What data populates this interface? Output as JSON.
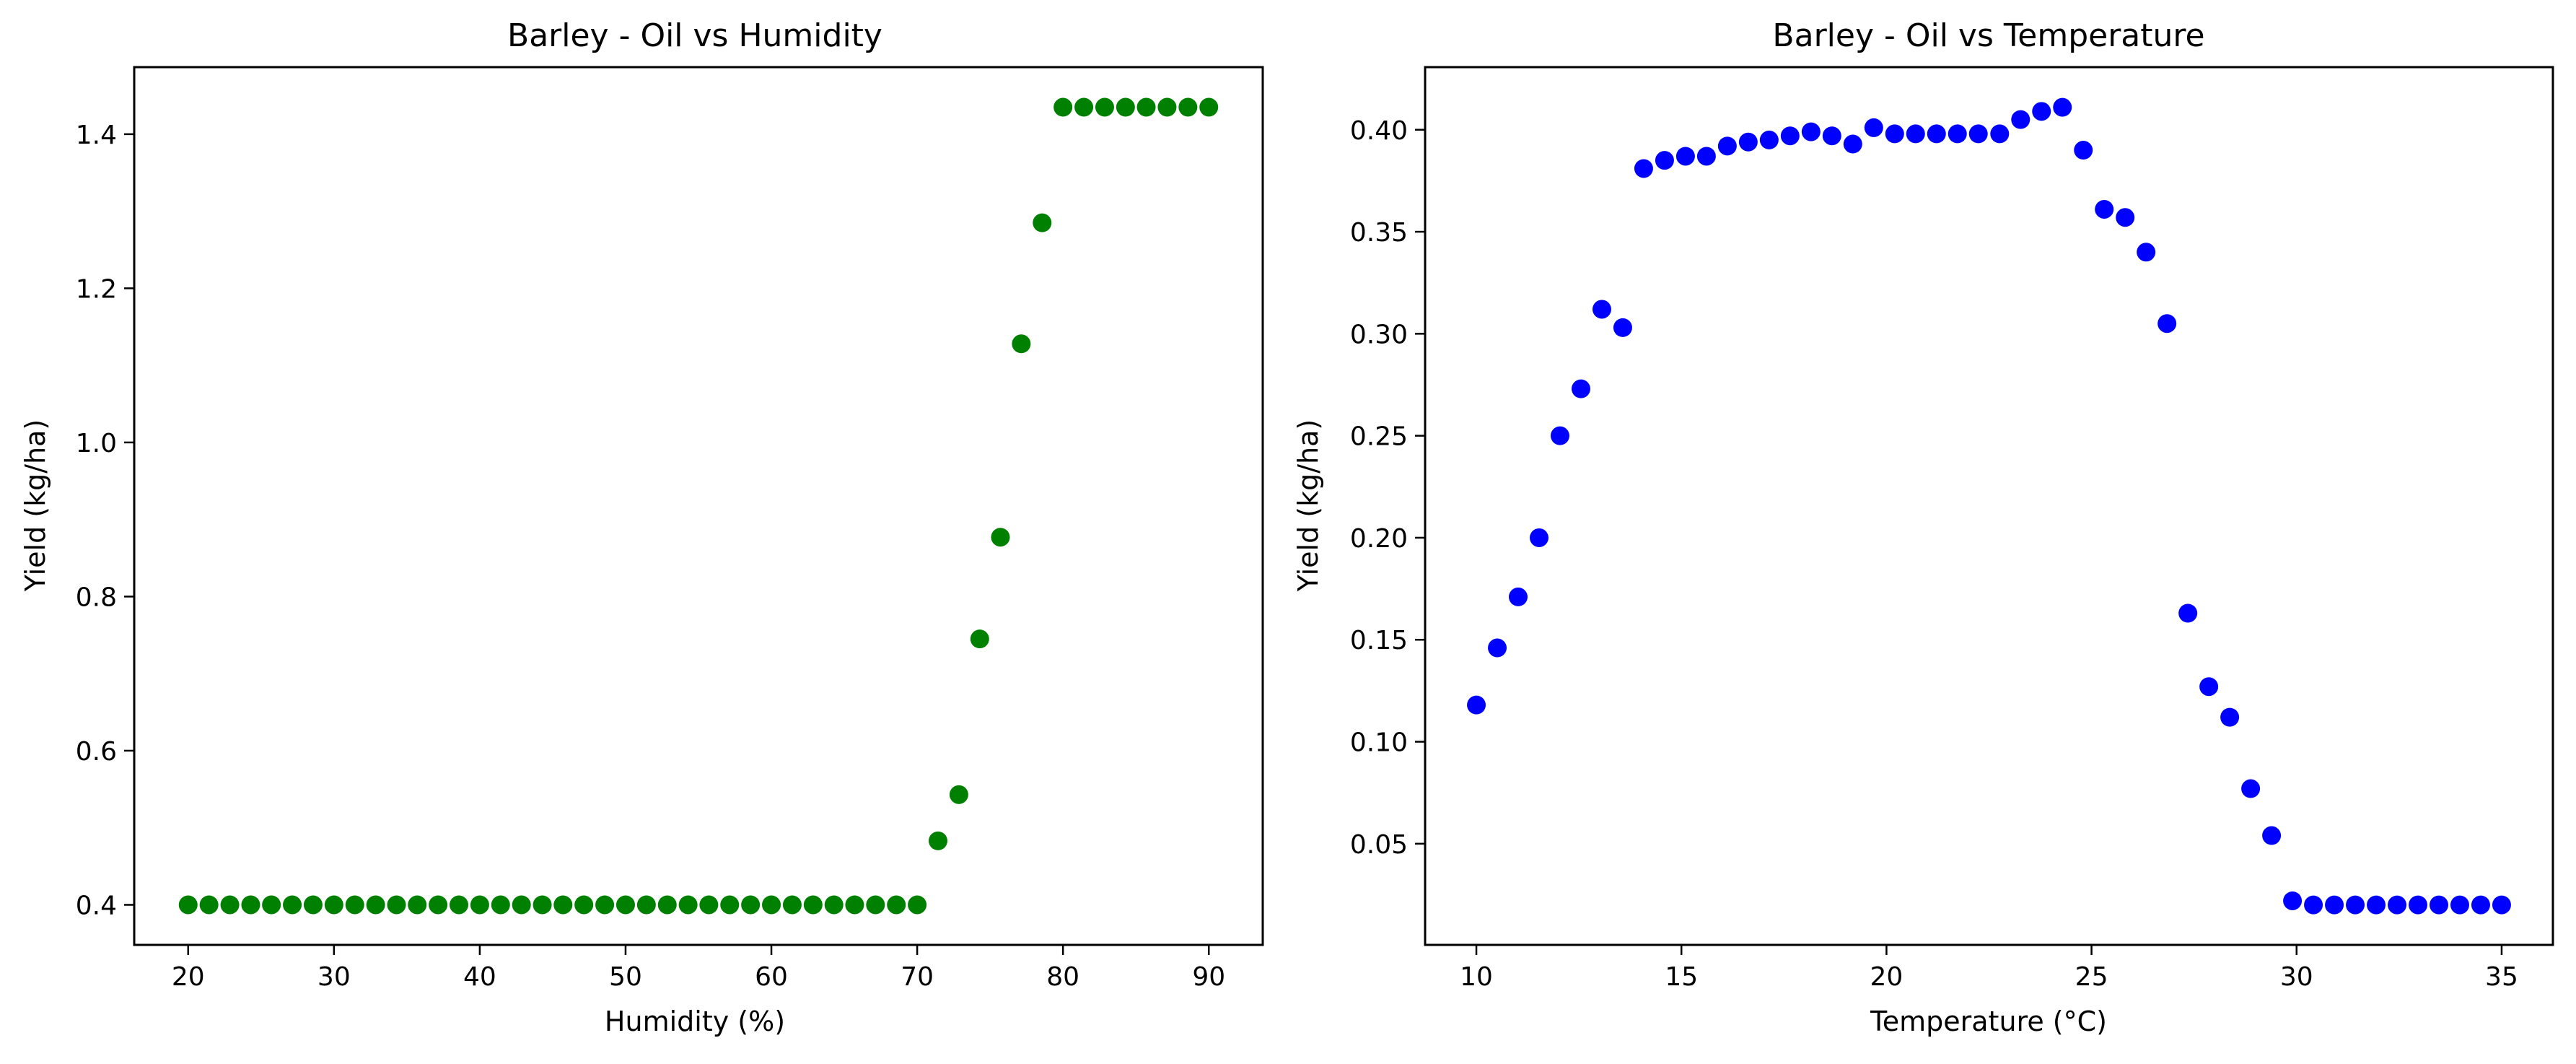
{
  "chart_data": [
    {
      "type": "scatter",
      "title": "Barley - Oil vs Humidity",
      "xlabel": "Humidity (%)",
      "ylabel": "Yield (kg/ha)",
      "xlim": [
        16.3,
        93.7
      ],
      "ylim": [
        0.348,
        1.487
      ],
      "xticks": [
        20,
        30,
        40,
        50,
        60,
        70,
        80,
        90
      ],
      "yticks": [
        0.4,
        0.6,
        0.8,
        1.0,
        1.2,
        1.4
      ],
      "ytick_decimals": 1,
      "grid": false,
      "color": "#008000",
      "series": [
        {
          "x": [
            20.0,
            21.43,
            22.86,
            24.29,
            25.71,
            27.14,
            28.57,
            30.0,
            31.43,
            32.86,
            34.29,
            35.71,
            37.14,
            38.57,
            40.0,
            41.43,
            42.86,
            44.29,
            45.71,
            47.14,
            48.57,
            50.0,
            51.43,
            52.86,
            54.29,
            55.71,
            57.14,
            58.57,
            60.0,
            61.43,
            62.86,
            64.29,
            65.71,
            67.14,
            68.57,
            70.0,
            71.43,
            72.86,
            74.29,
            75.71,
            77.14,
            78.57,
            80.0,
            81.43,
            82.86,
            84.29,
            85.71,
            87.14,
            88.57,
            90.0
          ],
          "y": [
            0.4,
            0.4,
            0.4,
            0.4,
            0.4,
            0.4,
            0.4,
            0.4,
            0.4,
            0.4,
            0.4,
            0.4,
            0.4,
            0.4,
            0.4,
            0.4,
            0.4,
            0.4,
            0.4,
            0.4,
            0.4,
            0.4,
            0.4,
            0.4,
            0.4,
            0.4,
            0.4,
            0.4,
            0.4,
            0.4,
            0.4,
            0.4,
            0.4,
            0.4,
            0.4,
            0.4,
            0.483,
            0.543,
            0.745,
            0.877,
            1.128,
            1.285,
            1.435,
            1.435,
            1.435,
            1.435,
            1.435,
            1.435,
            1.435,
            1.435
          ]
        }
      ]
    },
    {
      "type": "scatter",
      "title": "Barley - Oil vs Temperature",
      "xlabel": "Temperature (°C)",
      "ylabel": "Yield (kg/ha)",
      "xlim": [
        8.75,
        36.25
      ],
      "ylim": [
        0.0004,
        0.4307
      ],
      "xticks": [
        10,
        15,
        20,
        25,
        30,
        35
      ],
      "yticks": [
        0.05,
        0.1,
        0.15,
        0.2,
        0.25,
        0.3,
        0.35,
        0.4
      ],
      "ytick_decimals": 2,
      "grid": false,
      "color": "#0000ff",
      "series": [
        {
          "x": [
            10.0,
            10.51,
            11.02,
            11.53,
            12.04,
            12.55,
            13.06,
            13.57,
            14.08,
            14.59,
            15.1,
            15.61,
            16.12,
            16.63,
            17.14,
            17.65,
            18.16,
            18.67,
            19.18,
            19.69,
            20.2,
            20.71,
            21.22,
            21.73,
            22.24,
            22.76,
            23.27,
            23.78,
            24.29,
            24.8,
            25.31,
            25.82,
            26.33,
            26.84,
            27.35,
            27.86,
            28.37,
            28.88,
            29.39,
            29.9,
            30.41,
            30.92,
            31.43,
            31.94,
            32.45,
            32.96,
            33.47,
            33.98,
            34.49,
            35.0
          ],
          "y": [
            0.118,
            0.146,
            0.171,
            0.2,
            0.25,
            0.273,
            0.312,
            0.303,
            0.381,
            0.385,
            0.387,
            0.387,
            0.392,
            0.394,
            0.395,
            0.397,
            0.399,
            0.397,
            0.393,
            0.401,
            0.398,
            0.398,
            0.398,
            0.398,
            0.398,
            0.398,
            0.405,
            0.409,
            0.411,
            0.39,
            0.361,
            0.357,
            0.34,
            0.305,
            0.163,
            0.127,
            0.112,
            0.077,
            0.054,
            0.022,
            0.02,
            0.02,
            0.02,
            0.02,
            0.02,
            0.02,
            0.02,
            0.02,
            0.02,
            0.02
          ]
        }
      ]
    }
  ]
}
